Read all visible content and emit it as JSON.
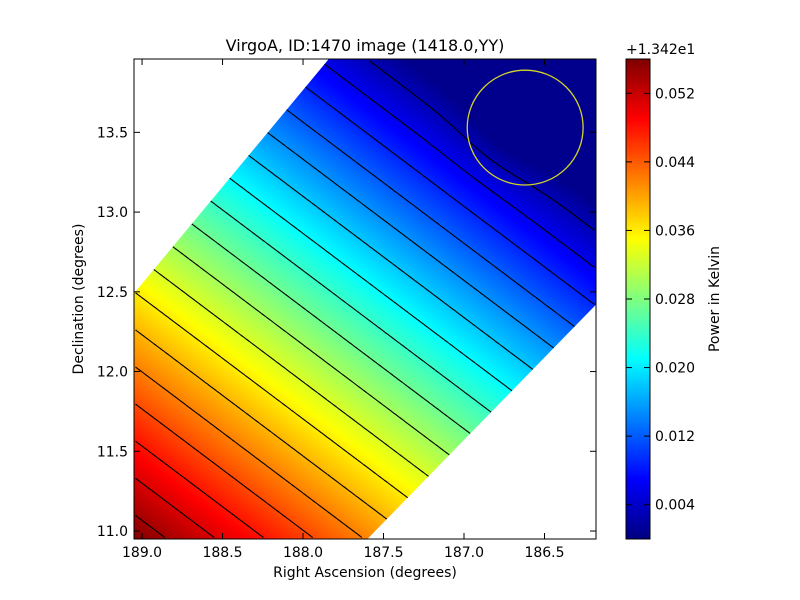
{
  "chart_data": {
    "type": "heatmap",
    "title": "VirgoA, ID:1470 image (1418.0,YY)",
    "xlabel": "Right Ascension (degrees)",
    "ylabel": "Declination (degrees)",
    "xlim": [
      189.05,
      186.18
    ],
    "ylim": [
      10.95,
      13.96
    ],
    "x_ticks": [
      189.0,
      188.5,
      188.0,
      187.5,
      187.0,
      186.5
    ],
    "x_tick_labels": [
      "189.0",
      "188.5",
      "188.0",
      "187.5",
      "187.0",
      "186.5"
    ],
    "y_ticks": [
      11.0,
      11.5,
      12.0,
      12.5,
      13.0,
      13.5
    ],
    "y_tick_labels": [
      "11.0",
      "11.5",
      "12.0",
      "12.5",
      "13.0",
      "13.5"
    ],
    "colormap": "jet",
    "colorbar": {
      "label": "Power in Kelvin",
      "offset_text": "+1.342e1",
      "range": [
        0.0,
        0.056
      ],
      "ticks": [
        0.004,
        0.012,
        0.02,
        0.028,
        0.036,
        0.044,
        0.052
      ],
      "tick_labels": [
        "0.004",
        "0.012",
        "0.020",
        "0.028",
        "0.036",
        "0.044",
        "0.052"
      ]
    },
    "field": {
      "gradient_start": [
        189.05,
        10.95
      ],
      "gradient_start_value": 0.056,
      "value_per_degree_along_gradient": 0.0162,
      "gradient_direction": [
        0.605,
        0.796
      ],
      "minimum_center": [
        186.62,
        13.62
      ],
      "minimum_value": 0.0007
    },
    "coverage_band_corners": [
      [
        189.05,
        12.49
      ],
      [
        189.05,
        10.95
      ],
      [
        187.6,
        10.95
      ],
      [
        186.18,
        12.42
      ],
      [
        186.18,
        13.96
      ],
      [
        187.84,
        13.96
      ]
    ],
    "contour_levels": [
      0.003,
      0.006,
      0.009,
      0.012,
      0.015,
      0.018,
      0.021,
      0.024,
      0.027,
      0.03,
      0.033,
      0.036,
      0.039,
      0.042,
      0.045,
      0.048,
      0.051,
      0.054
    ],
    "annotations": [
      {
        "type": "circle",
        "center": [
          186.62,
          13.53
        ],
        "radius_deg": 0.36,
        "color": "#d4d42a"
      }
    ]
  }
}
